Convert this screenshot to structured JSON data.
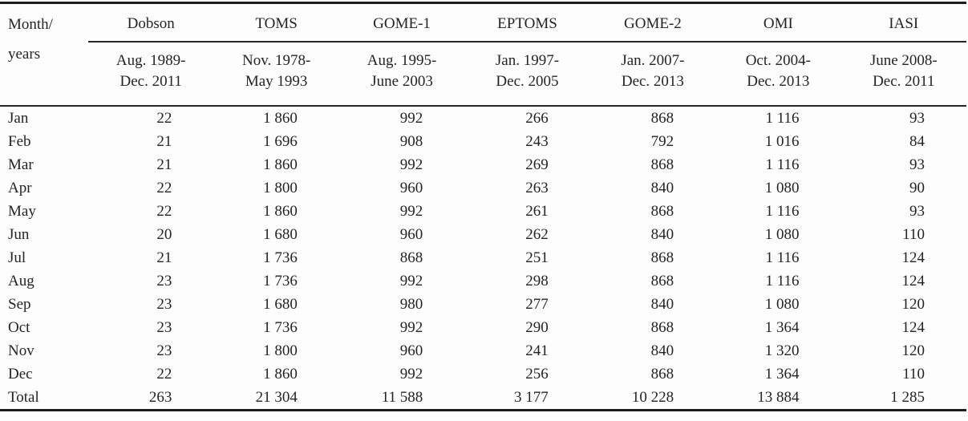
{
  "table": {
    "corner": {
      "line1": "Month/",
      "line2": "years"
    },
    "columns": [
      {
        "name": "Dobson",
        "period_line1": "Aug. 1989-",
        "period_line2": "Dec. 2011"
      },
      {
        "name": "TOMS",
        "period_line1": "Nov. 1978-",
        "period_line2": "May 1993"
      },
      {
        "name": "GOME-1",
        "period_line1": "Aug. 1995-",
        "period_line2": "June 2003"
      },
      {
        "name": "EPTOMS",
        "period_line1": "Jan. 1997-",
        "period_line2": "Dec. 2005"
      },
      {
        "name": "GOME-2",
        "period_line1": "Jan. 2007-",
        "period_line2": "Dec. 2013"
      },
      {
        "name": "OMI",
        "period_line1": "Oct. 2004-",
        "period_line2": "Dec. 2013"
      },
      {
        "name": "IASI",
        "period_line1": "June 2008-",
        "period_line2": "Dec. 2011"
      }
    ],
    "rows": [
      {
        "label": "Jan",
        "values": [
          "22",
          "1 860",
          "992",
          "266",
          "868",
          "1 116",
          "93"
        ]
      },
      {
        "label": "Feb",
        "values": [
          "21",
          "1 696",
          "908",
          "243",
          "792",
          "1 016",
          "84"
        ]
      },
      {
        "label": "Mar",
        "values": [
          "21",
          "1 860",
          "992",
          "269",
          "868",
          "1 116",
          "93"
        ]
      },
      {
        "label": "Apr",
        "values": [
          "22",
          "1 800",
          "960",
          "263",
          "840",
          "1 080",
          "90"
        ]
      },
      {
        "label": "May",
        "values": [
          "22",
          "1 860",
          "992",
          "261",
          "868",
          "1 116",
          "93"
        ]
      },
      {
        "label": "Jun",
        "values": [
          "20",
          "1 680",
          "960",
          "262",
          "840",
          "1 080",
          "110"
        ]
      },
      {
        "label": "Jul",
        "values": [
          "21",
          "1 736",
          "868",
          "251",
          "868",
          "1 116",
          "124"
        ]
      },
      {
        "label": "Aug",
        "values": [
          "23",
          "1 736",
          "992",
          "298",
          "868",
          "1 116",
          "124"
        ]
      },
      {
        "label": "Sep",
        "values": [
          "23",
          "1 680",
          "980",
          "277",
          "840",
          "1 080",
          "120"
        ]
      },
      {
        "label": "Oct",
        "values": [
          "23",
          "1 736",
          "992",
          "290",
          "868",
          "1 364",
          "124"
        ]
      },
      {
        "label": "Nov",
        "values": [
          "23",
          "1 800",
          "960",
          "241",
          "840",
          "1 320",
          "120"
        ]
      },
      {
        "label": "Dec",
        "values": [
          "22",
          "1 860",
          "992",
          "256",
          "868",
          "1 364",
          "110"
        ]
      },
      {
        "label": "Total",
        "values": [
          "263",
          "21 304",
          "11 588",
          "3 177",
          "10 228",
          "13 884",
          "1 285"
        ]
      }
    ]
  },
  "colors": {
    "text": "#242424",
    "rule_heavy": "#1c1c1c",
    "rule_light": "#272727",
    "background": "#fdfdfd"
  }
}
